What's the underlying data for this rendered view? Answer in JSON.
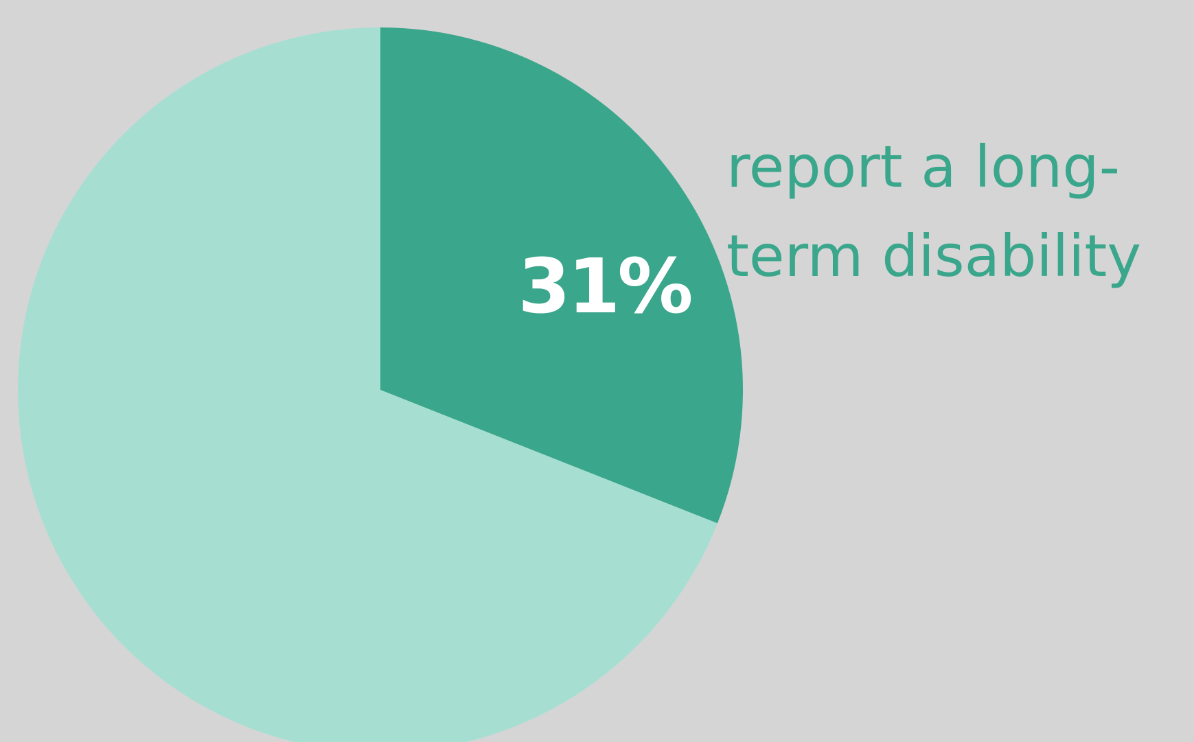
{
  "chart_data": {
    "type": "pie",
    "slices": [
      {
        "value": 31,
        "color": "#3aa68b"
      },
      {
        "value": 69,
        "color": "#a6dfd2"
      }
    ],
    "center_label": "31%",
    "caption_lines": [
      "report a long-",
      "term disability"
    ]
  },
  "colors": {
    "background": "#d5d5d5",
    "accent": "#3aa68b",
    "light": "#a6dfd2",
    "label": "#ffffff"
  }
}
